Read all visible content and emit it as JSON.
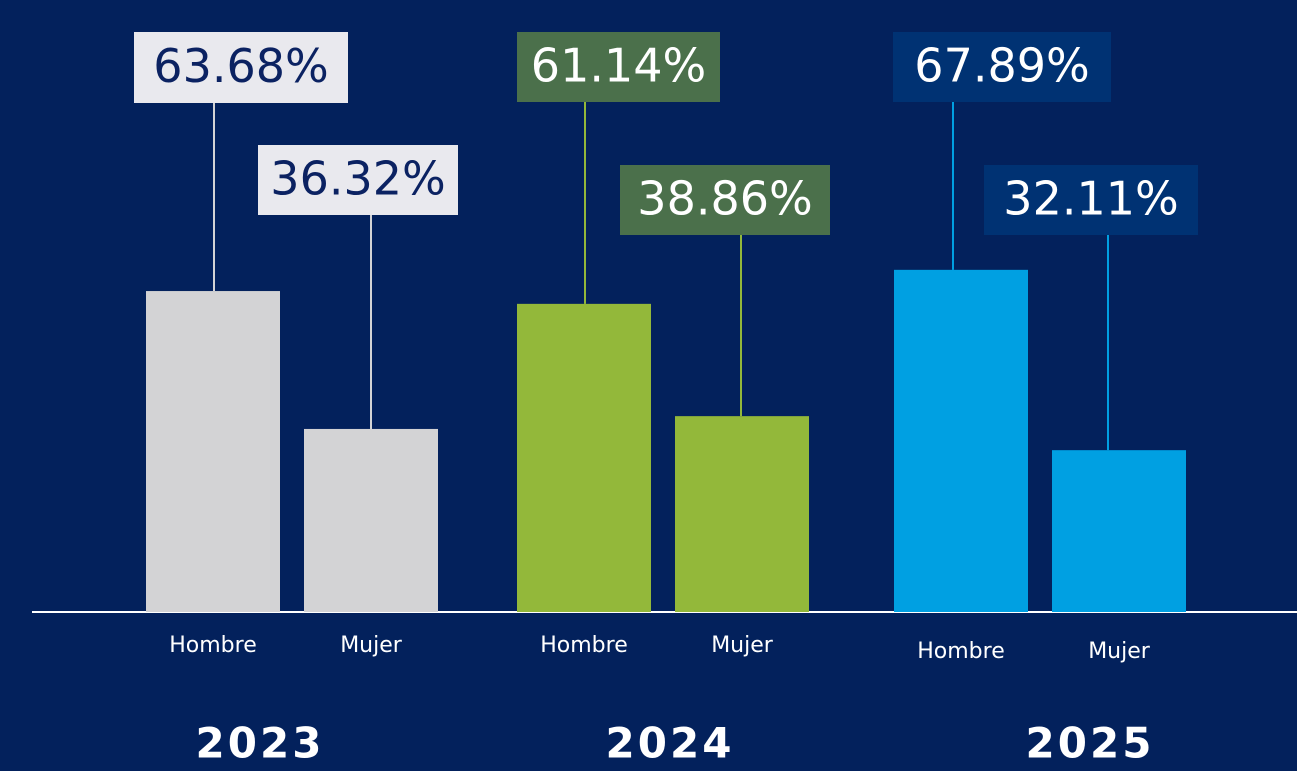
{
  "chart_data": {
    "type": "bar",
    "groups": [
      {
        "name": "2023",
        "color": "#d3d3d5",
        "label_box_color": "#e9e9ee",
        "label_text_color": "#0b2262",
        "categories": [
          "Hombre",
          "Mujer"
        ],
        "values": [
          63.68,
          36.32
        ],
        "value_labels": [
          "63.68%",
          "36.32%"
        ]
      },
      {
        "name": "2024",
        "color": "#93b83a",
        "label_box_color": "#4b704b",
        "label_text_color": "#ffffff",
        "categories": [
          "Hombre",
          "Mujer"
        ],
        "values": [
          61.14,
          38.86
        ],
        "value_labels": [
          "61.14%",
          "38.86%"
        ]
      },
      {
        "name": "2025",
        "color": "#00a0e2",
        "label_box_color": "#003273",
        "label_text_color": "#ffffff",
        "categories": [
          "Hombre",
          "Mujer"
        ],
        "values": [
          67.89,
          32.11
        ],
        "value_labels": [
          "67.89%",
          "32.11%"
        ]
      }
    ]
  }
}
